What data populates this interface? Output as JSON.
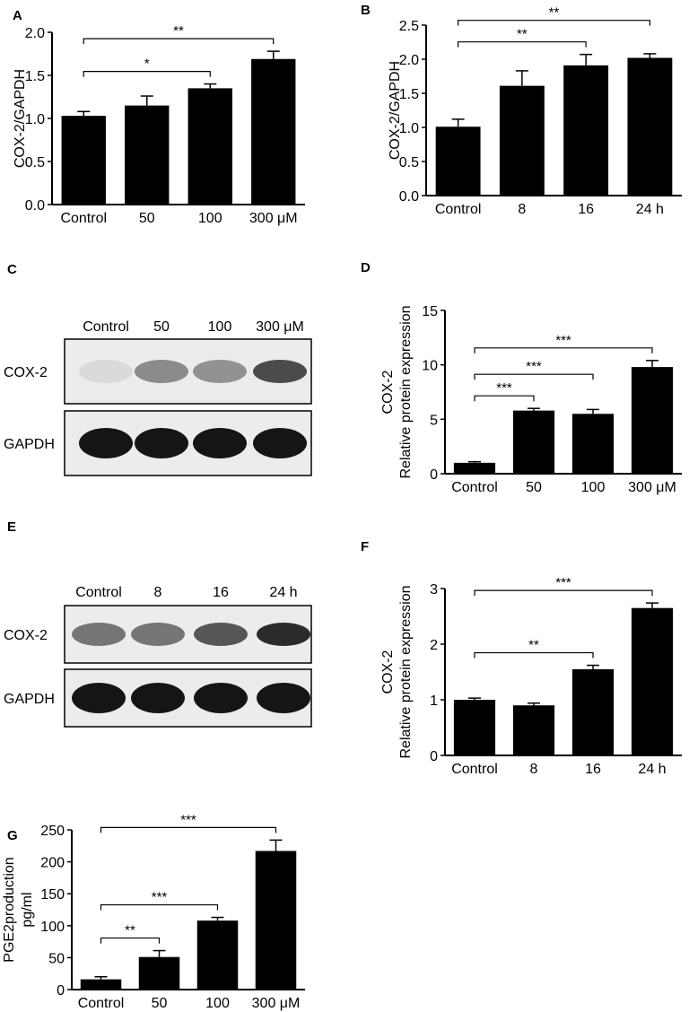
{
  "chart_data": [
    {
      "panel": "A",
      "type": "bar",
      "ylabel": "COX-2/GAPDH",
      "categories": [
        "Control",
        "50",
        "100",
        "300 μM"
      ],
      "values": [
        1.03,
        1.15,
        1.35,
        1.69
      ],
      "errors": [
        0.05,
        0.11,
        0.05,
        0.09
      ],
      "ylim": [
        0,
        2.0
      ],
      "yticks": [
        "0.0",
        "0.5",
        "1.0",
        "1.5",
        "2.0"
      ],
      "significance": [
        {
          "from": 0,
          "to": 2,
          "label": "*"
        },
        {
          "from": 0,
          "to": 3,
          "label": "**"
        }
      ]
    },
    {
      "panel": "B",
      "type": "bar",
      "ylabel": "COX-2/GAPDH",
      "categories": [
        "Control",
        "8",
        "16",
        "24 h"
      ],
      "values": [
        1.01,
        1.61,
        1.91,
        2.02
      ],
      "errors": [
        0.11,
        0.22,
        0.16,
        0.06
      ],
      "ylim": [
        0,
        2.5
      ],
      "yticks": [
        "0.0",
        "0.5",
        "1.0",
        "1.5",
        "2.0",
        "2.5"
      ],
      "significance": [
        {
          "from": 0,
          "to": 2,
          "label": "**"
        },
        {
          "from": 0,
          "to": 3,
          "label": "**"
        }
      ]
    },
    {
      "panel": "D",
      "type": "bar",
      "ylabel_lines": [
        "COX-2",
        "Relative protein expression"
      ],
      "categories": [
        "Control",
        "50",
        "100",
        "300 μM"
      ],
      "values": [
        1.0,
        5.8,
        5.5,
        9.8
      ],
      "errors": [
        0.1,
        0.2,
        0.4,
        0.6
      ],
      "ylim": [
        0,
        15
      ],
      "yticks": [
        "0",
        "5",
        "10",
        "15"
      ],
      "significance": [
        {
          "from": 0,
          "to": 1,
          "label": "***"
        },
        {
          "from": 0,
          "to": 2,
          "label": "***"
        },
        {
          "from": 0,
          "to": 3,
          "label": "***"
        }
      ]
    },
    {
      "panel": "F",
      "type": "bar",
      "ylabel_lines": [
        "COX-2",
        "Relative protein expression"
      ],
      "categories": [
        "Control",
        "8",
        "16",
        "24 h"
      ],
      "values": [
        1.0,
        0.9,
        1.55,
        2.65
      ],
      "errors": [
        0.03,
        0.04,
        0.07,
        0.09
      ],
      "ylim": [
        0,
        3
      ],
      "yticks": [
        "0",
        "1",
        "2",
        "3"
      ],
      "significance": [
        {
          "from": 0,
          "to": 2,
          "label": "**"
        },
        {
          "from": 0,
          "to": 3,
          "label": "***"
        }
      ]
    },
    {
      "panel": "G",
      "type": "bar",
      "ylabel_lines": [
        "PGE2production",
        "pg/ml"
      ],
      "categories": [
        "Control",
        "50",
        "100",
        "300 μM"
      ],
      "values": [
        16,
        51,
        108,
        217
      ],
      "errors": [
        4,
        10,
        5,
        17
      ],
      "ylim": [
        0,
        250
      ],
      "yticks": [
        "0",
        "50",
        "100",
        "150",
        "200",
        "250"
      ],
      "significance": [
        {
          "from": 0,
          "to": 1,
          "label": "**"
        },
        {
          "from": 0,
          "to": 2,
          "label": "***"
        },
        {
          "from": 0,
          "to": 3,
          "label": "***"
        }
      ]
    }
  ],
  "blots": [
    {
      "panel": "C",
      "lanes": [
        "Control",
        "50",
        "100",
        "300 μM"
      ],
      "rows": [
        {
          "label": "COX-2",
          "intensities": [
            0.08,
            0.45,
            0.42,
            0.75
          ]
        },
        {
          "label": "GAPDH",
          "intensities": [
            1.0,
            1.0,
            1.0,
            1.0
          ]
        }
      ]
    },
    {
      "panel": "E",
      "lanes": [
        "Control",
        "8",
        "16",
        "24 h"
      ],
      "rows": [
        {
          "label": "COX-2",
          "intensities": [
            0.55,
            0.55,
            0.7,
            0.9
          ]
        },
        {
          "label": "GAPDH",
          "intensities": [
            1.0,
            1.0,
            1.0,
            1.0
          ]
        }
      ]
    }
  ],
  "panel_letters": [
    "A",
    "B",
    "C",
    "D",
    "E",
    "F",
    "G"
  ]
}
